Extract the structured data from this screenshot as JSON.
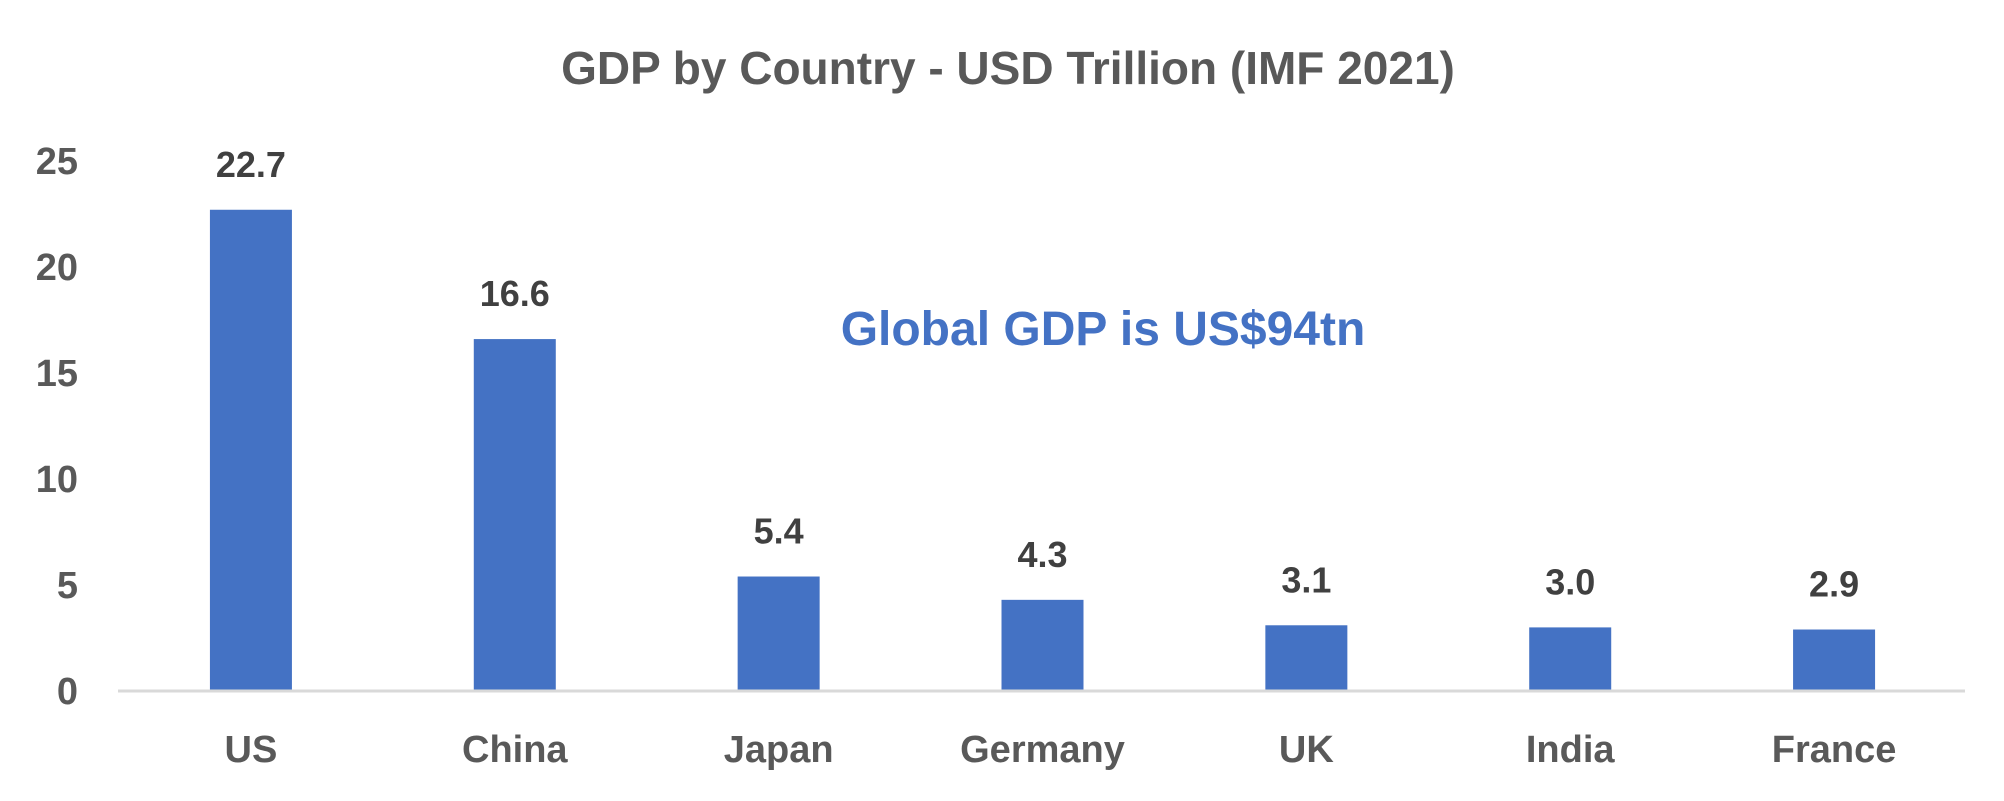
{
  "chart_data": {
    "type": "bar",
    "title": "GDP by Country - USD Trillion (IMF 2021)",
    "categories": [
      "US",
      "China",
      "Japan",
      "Germany",
      "UK",
      "India",
      "France"
    ],
    "values": [
      22.7,
      16.6,
      5.4,
      4.3,
      3.1,
      3.0,
      2.9
    ],
    "data_labels": [
      "22.7",
      "16.6",
      "5.4",
      "4.3",
      "3.1",
      "3.0",
      "2.9"
    ],
    "xlabel": "",
    "ylabel": "",
    "ylim": [
      0,
      25
    ],
    "yticks": [
      "0",
      "5",
      "10",
      "15",
      "20",
      "25"
    ],
    "grid": false,
    "legend": "none",
    "annotation": "Global GDP is US$94tn",
    "bar_color": "#4472C4",
    "annotation_color": "#4472C4"
  }
}
